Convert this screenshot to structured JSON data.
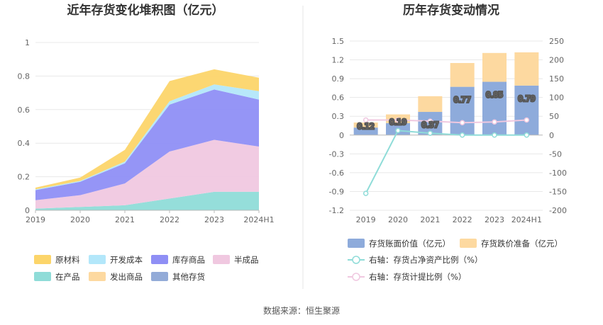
{
  "source_label": "数据来源：恒生聚源",
  "chart_data": [
    {
      "type": "area",
      "title": "近年存货变化堆积图（亿元）",
      "categories": [
        "2019",
        "2020",
        "2021",
        "2022",
        "2023",
        "2024H1"
      ],
      "ylim": [
        0,
        1
      ],
      "yticks": [
        "0",
        "0.2",
        "0.4",
        "0.6",
        "0.8",
        "1"
      ],
      "stacked": true,
      "series": [
        {
          "name": "在产品",
          "color": "#8fdcd8",
          "values": [
            0.01,
            0.02,
            0.03,
            0.07,
            0.11,
            0.11
          ]
        },
        {
          "name": "半成品",
          "color": "#f0c8e0",
          "values": [
            0.05,
            0.07,
            0.13,
            0.28,
            0.31,
            0.27
          ]
        },
        {
          "name": "库存商品",
          "color": "#8f8ff5",
          "values": [
            0.06,
            0.08,
            0.12,
            0.28,
            0.3,
            0.28
          ]
        },
        {
          "name": "开发成本",
          "color": "#b3e7fa",
          "values": [
            0.005,
            0.005,
            0.01,
            0.02,
            0.03,
            0.05
          ]
        },
        {
          "name": "原材料",
          "color": "#fcd56a",
          "values": [
            0.01,
            0.02,
            0.07,
            0.12,
            0.09,
            0.08
          ]
        },
        {
          "name": "发出商品",
          "color": "#fdd9a0",
          "values": [
            0,
            0,
            0,
            0,
            0,
            0
          ]
        },
        {
          "name": "其他存货",
          "color": "#93abd8",
          "values": [
            0,
            0,
            0,
            0,
            0,
            0
          ]
        }
      ],
      "legend_order": [
        "原材料",
        "开发成本",
        "库存商品",
        "半成品",
        "在产品",
        "发出商品",
        "其他存货"
      ],
      "legend_position": "bottom"
    },
    {
      "type": "bar",
      "title": "历年存货变动情况",
      "categories": [
        "2019",
        "2020",
        "2021",
        "2022",
        "2023",
        "2024H1"
      ],
      "ylim_left": [
        -1.2,
        1.5
      ],
      "yticks_left": [
        "-1.2",
        "-0.9",
        "-0.6",
        "-0.3",
        "0",
        "0.3",
        "0.6",
        "0.9",
        "1.2",
        "1.5"
      ],
      "ylim_right": [
        -200,
        250
      ],
      "yticks_right": [
        "-200",
        "-150",
        "-100",
        "-50",
        "0",
        "50",
        "100",
        "150",
        "200",
        "250"
      ],
      "stacked": true,
      "series": [
        {
          "name": "存货账面价值（亿元）",
          "color": "#8eabdb",
          "axis": "left",
          "values": [
            0.12,
            0.19,
            0.37,
            0.77,
            0.85,
            0.79
          ],
          "labels": [
            "0.12",
            "0.19",
            "0.37",
            "0.77",
            "0.85",
            "0.79"
          ]
        },
        {
          "name": "存货跌价准备（亿元）",
          "color": "#fdd9a0",
          "axis": "left",
          "values": [
            0.08,
            0.14,
            0.25,
            0.38,
            0.46,
            0.53
          ]
        }
      ],
      "line_series": [
        {
          "name": "右轴：存货占净资产比例（%）",
          "color": "#8fdcd8",
          "axis": "right",
          "values": [
            -155,
            12,
            5,
            0,
            0,
            0
          ]
        },
        {
          "name": "右轴：存货计提比例（%）",
          "color": "#f0c8e0",
          "axis": "right",
          "values": [
            40,
            40,
            37,
            33,
            35,
            40
          ]
        }
      ],
      "legend_position": "bottom"
    }
  ]
}
